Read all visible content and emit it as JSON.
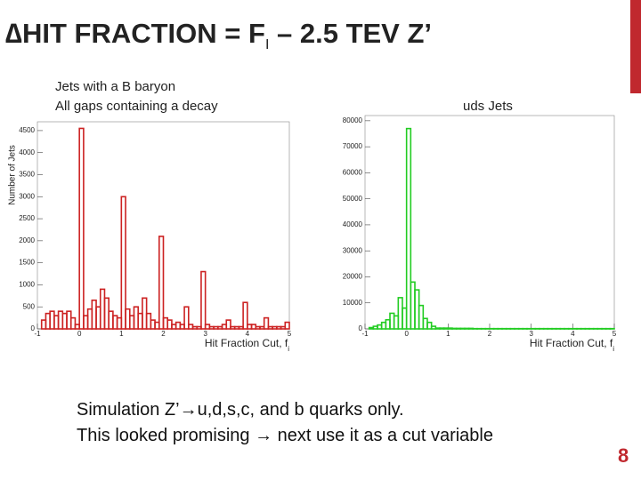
{
  "slide": {
    "title_prefix": "∆HIT FRACTION = F",
    "title_sub": "I",
    "title_suffix": " – 2.5 TEV Z’",
    "lines": [
      "Simulation Z’→u,d,s,c, and b quarks only.",
      "This looked promising → next use it as a cut variable"
    ],
    "page_number": "8"
  },
  "chart_data": [
    {
      "type": "histogram",
      "title": "Jets with a B baryon",
      "subtitle": "All gaps containing a decay",
      "xlabel": "Hit Fraction Cut, f",
      "xlabel_sub": "i",
      "ylabel": "Number of Jets",
      "color": "#cc2222",
      "bins": [
        -1,
        -0.9,
        -0.8,
        -0.7,
        -0.6,
        -0.5,
        -0.4,
        -0.3,
        -0.2,
        -0.1,
        0,
        0.1,
        0.2,
        0.3,
        0.4,
        0.5,
        0.6,
        0.7,
        0.8,
        0.9,
        1,
        1.1,
        1.2,
        1.3,
        1.4,
        1.5,
        1.6,
        1.7,
        1.8,
        1.9,
        2,
        2.1,
        2.2,
        2.3,
        2.4,
        2.5,
        2.6,
        2.7,
        2.8,
        2.9,
        3,
        3.1,
        3.2,
        3.3,
        3.4,
        3.5,
        3.6,
        3.7,
        3.8,
        3.9,
        4,
        4.1,
        4.2,
        4.3,
        4.4,
        4.5,
        4.6,
        4.7,
        4.8,
        4.9,
        5
      ],
      "values": [
        0,
        200,
        350,
        400,
        300,
        400,
        350,
        400,
        250,
        100,
        4550,
        300,
        450,
        650,
        500,
        900,
        700,
        400,
        300,
        250,
        3000,
        450,
        300,
        500,
        350,
        700,
        350,
        200,
        150,
        2100,
        250,
        200,
        100,
        150,
        100,
        500,
        100,
        50,
        50,
        1300,
        100,
        50,
        50,
        50,
        100,
        200,
        50,
        50,
        50,
        600,
        100,
        100,
        50,
        50,
        250,
        50,
        50,
        50,
        50,
        150
      ],
      "xlim": [
        -1,
        5
      ],
      "xticks": [
        -1,
        0,
        1,
        2,
        3,
        4,
        5
      ],
      "ylim": [
        0,
        4700
      ],
      "yticks": [
        0,
        500,
        1000,
        1500,
        2000,
        2500,
        3000,
        3500,
        4000,
        4500
      ]
    },
    {
      "type": "histogram",
      "title": "uds Jets",
      "xlabel": "Hit Fraction Cut, f",
      "xlabel_sub": "i",
      "color": "#22cc22",
      "bins": [
        -1,
        -0.9,
        -0.8,
        -0.7,
        -0.6,
        -0.5,
        -0.4,
        -0.3,
        -0.2,
        -0.1,
        0,
        0.1,
        0.2,
        0.3,
        0.4,
        0.5,
        0.6,
        0.7,
        0.8,
        0.9,
        1,
        1.1,
        1.2,
        1.3,
        1.4,
        1.5,
        1.6,
        1.7,
        1.8,
        1.9,
        2,
        2.1,
        2.2,
        2.3,
        2.4,
        2.5,
        2.6,
        2.7,
        2.8,
        2.9,
        3,
        3.1,
        3.2,
        3.3,
        3.4,
        3.5,
        3.6,
        3.7,
        3.8,
        3.9,
        4,
        4.1,
        4.2,
        4.3,
        4.4,
        4.5,
        4.6,
        4.7,
        4.8,
        4.9,
        5
      ],
      "values": [
        0,
        500,
        1000,
        1500,
        2500,
        3500,
        6000,
        5000,
        12000,
        8000,
        77000,
        18000,
        15000,
        9000,
        4000,
        2500,
        1000,
        300,
        300,
        300,
        300,
        200,
        200,
        200,
        200,
        200,
        100,
        100,
        100,
        100,
        100,
        100,
        100,
        100,
        100,
        100,
        100,
        100,
        100,
        100,
        100,
        100,
        100,
        100,
        100,
        100,
        100,
        100,
        100,
        100,
        100,
        100,
        100,
        100,
        100,
        100,
        100,
        100,
        100,
        100
      ],
      "xlim": [
        -1,
        5
      ],
      "xticks": [
        -1,
        0,
        1,
        2,
        3,
        4,
        5
      ],
      "ylim": [
        0,
        82000
      ],
      "yticks": [
        0,
        10000,
        20000,
        30000,
        40000,
        50000,
        60000,
        70000,
        80000
      ]
    }
  ]
}
